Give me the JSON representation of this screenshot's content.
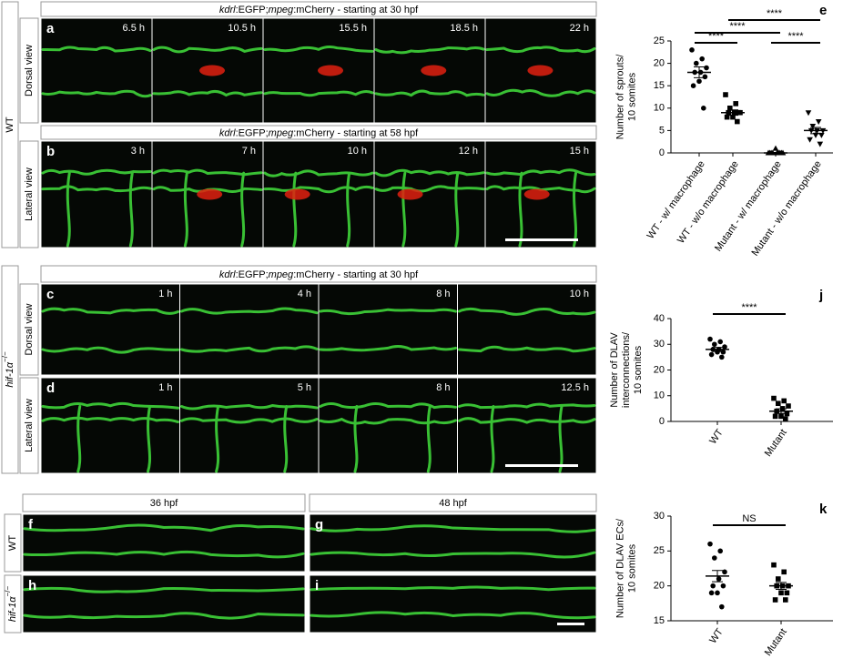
{
  "figure": {
    "side_labels": {
      "wt_top": "WT",
      "dorsal_a": "Dorsal view",
      "lateral_b": "Lateral view",
      "hif_mid": "hif-1α",
      "hif_mid_sup": "−/−",
      "dorsal_c": "Dorsal view",
      "lateral_d": "Lateral view",
      "wt_f": "WT",
      "hif_h": "hif-1α",
      "hif_h_sup": "−/−"
    },
    "rows": [
      {
        "letter": "a",
        "header": [
          {
            "text": "kdrl",
            "italic": true
          },
          {
            "text": ":EGFP;",
            "italic": false
          },
          {
            "text": "mpeg",
            "italic": true
          },
          {
            "text": ":mCherry - starting at 30 hpf",
            "italic": false
          }
        ],
        "times": [
          "6.5 h",
          "10.5 h",
          "15.5 h",
          "18.5 h",
          "22 h"
        ]
      },
      {
        "letter": "b",
        "header": [
          {
            "text": "kdrl",
            "italic": true
          },
          {
            "text": ":EGFP;",
            "italic": false
          },
          {
            "text": "mpeg",
            "italic": true
          },
          {
            "text": ":mCherry - starting at 58 hpf",
            "italic": false
          }
        ],
        "times": [
          "3 h",
          "7 h",
          "10 h",
          "12 h",
          "15 h"
        ]
      },
      {
        "letter": "c",
        "header": [
          {
            "text": "kdrl",
            "italic": true
          },
          {
            "text": ":EGFP;",
            "italic": false
          },
          {
            "text": "mpeg",
            "italic": true
          },
          {
            "text": ":mCherry - starting at 30 hpf",
            "italic": false
          }
        ],
        "times": [
          "1 h",
          "4 h",
          "8 h",
          "10 h"
        ]
      },
      {
        "letter": "d",
        "times": [
          "1 h",
          "5 h",
          "8 h",
          "12.5 h"
        ]
      }
    ],
    "bottom": {
      "headers": [
        "36 hpf",
        "48 hpf"
      ],
      "letters": [
        "f",
        "g",
        "h",
        "i"
      ]
    }
  },
  "chart_data": [
    {
      "type": "dot",
      "letter": "e",
      "y_label": [
        "Number of sprouts/",
        "10 somites"
      ],
      "categories": [
        "WT - w/ macrophage",
        "WT - w/o macrophage",
        "Mutant - w/ macrophage",
        "Mutant - w/o macrophage"
      ],
      "markers": [
        "circle",
        "square",
        "triangle",
        "triangle-down"
      ],
      "color": "#000000",
      "values": [
        [
          23,
          21,
          20,
          19,
          18,
          18,
          17,
          16,
          15,
          10
        ],
        [
          13,
          11,
          10,
          9,
          9,
          9,
          9,
          8,
          8,
          7
        ],
        [
          0,
          0,
          0,
          0,
          0,
          0,
          0,
          1,
          0,
          0
        ],
        [
          9,
          7,
          6,
          5,
          5,
          5,
          4,
          4,
          3,
          2
        ]
      ],
      "means": [
        18,
        9,
        0,
        5
      ],
      "sem": [
        1.2,
        0.6,
        0.1,
        0.7
      ],
      "significance": [
        {
          "label": "****",
          "from": 0,
          "to": 1
        },
        {
          "label": "****",
          "from": 2,
          "to": 3
        },
        {
          "label": "****",
          "from": 0,
          "to": 2
        },
        {
          "label": "****",
          "from": 1,
          "to": 3
        }
      ],
      "ylim": [
        0,
        25
      ],
      "yticks": [
        0,
        5,
        10,
        15,
        20,
        25
      ]
    },
    {
      "type": "dot",
      "letter": "j",
      "y_label": [
        "Number of DLAV",
        "interconnections/",
        "10 somites"
      ],
      "categories": [
        "WT",
        "Mutant"
      ],
      "markers": [
        "circle",
        "square"
      ],
      "color": "#000000",
      "values": [
        [
          32,
          31,
          30,
          29,
          28,
          28,
          27,
          27,
          26,
          25
        ],
        [
          9,
          8,
          7,
          6,
          5,
          4,
          3,
          2,
          2,
          1
        ]
      ],
      "means": [
        28,
        4
      ],
      "sem": [
        0.8,
        0.9
      ],
      "significance": [
        {
          "label": "****",
          "from": 0,
          "to": 1
        }
      ],
      "ylim": [
        0,
        40
      ],
      "yticks": [
        0,
        10,
        20,
        30,
        40
      ]
    },
    {
      "type": "dot",
      "letter": "k",
      "y_label": [
        "Number of DLAV ECs/",
        "10 somites"
      ],
      "categories": [
        "WT",
        "Mutant"
      ],
      "markers": [
        "circle",
        "square"
      ],
      "color": "#000000",
      "values": [
        [
          26,
          25,
          24,
          22,
          21,
          20,
          20,
          19,
          19,
          17
        ],
        [
          23,
          22,
          21,
          20,
          20,
          20,
          19,
          19,
          18,
          18
        ]
      ],
      "means": [
        21.4,
        20
      ],
      "sem": [
        0.8,
        0.5
      ],
      "significance": [
        {
          "label": "NS",
          "from": 0,
          "to": 1
        }
      ],
      "ylim": [
        15,
        30
      ],
      "yticks": [
        15,
        20,
        25,
        30
      ]
    }
  ]
}
